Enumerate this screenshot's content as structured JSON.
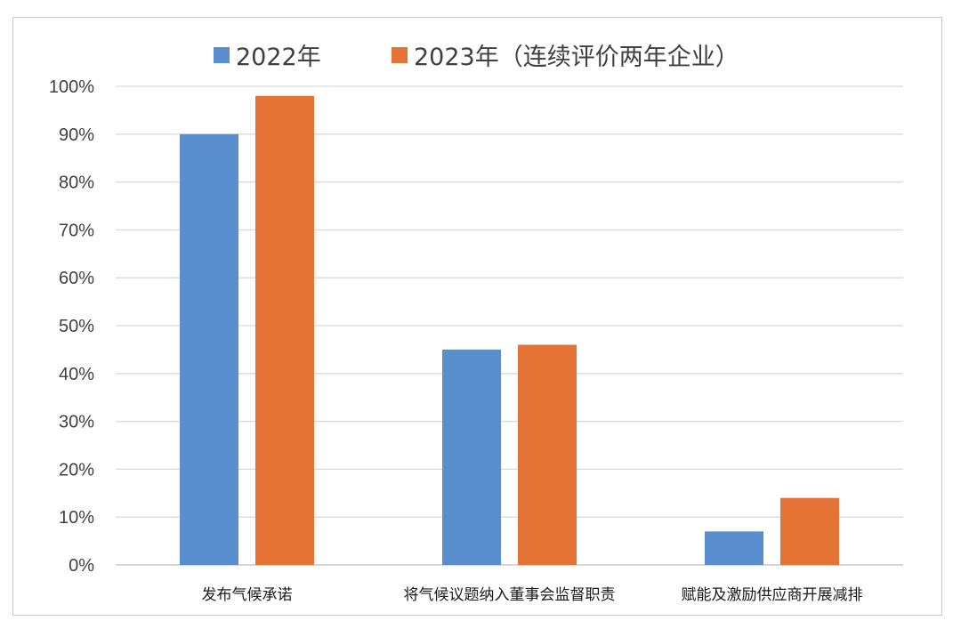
{
  "chart_data": {
    "type": "bar",
    "categories": [
      "发布气候承诺",
      "将气候议题纳入董事会监督职责",
      "赋能及激励供应商开展减排"
    ],
    "series": [
      {
        "name": "2022年",
        "values": [
          90,
          45,
          7
        ],
        "color": "#5a8fcf"
      },
      {
        "name": "2023年（连续评价两年企业）",
        "values": [
          98,
          46,
          14
        ],
        "color": "#e57336"
      }
    ],
    "y_ticks": [
      "0%",
      "10%",
      "20%",
      "30%",
      "40%",
      "50%",
      "60%",
      "70%",
      "80%",
      "90%",
      "100%"
    ],
    "ylim": [
      0,
      100
    ],
    "grid": true,
    "legend_position": "top"
  }
}
